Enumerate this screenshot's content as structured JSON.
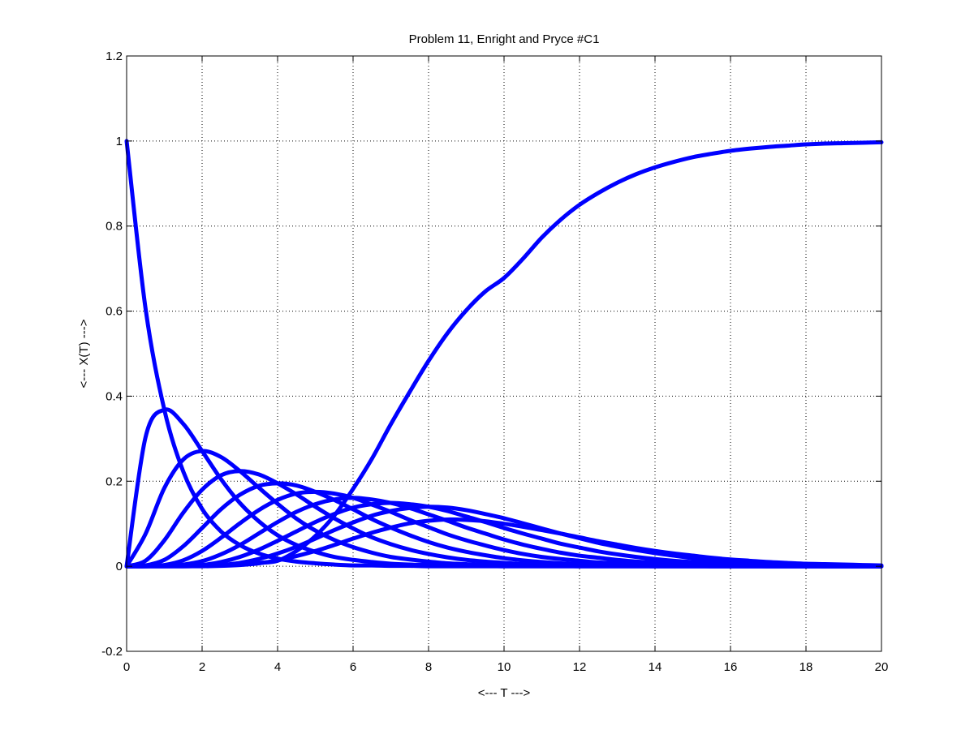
{
  "chart_data": {
    "type": "line",
    "title": "Problem 11, Enright and Pryce #C1",
    "xlabel": "<--- T --->",
    "ylabel": "<--- X(T) --->",
    "xlim": [
      0,
      20
    ],
    "ylim": [
      -0.2,
      1.2
    ],
    "xticks": [
      0,
      2,
      4,
      6,
      8,
      10,
      12,
      14,
      16,
      18,
      20
    ],
    "xtick_labels": [
      "0",
      "2",
      "4",
      "6",
      "8",
      "10",
      "12",
      "14",
      "16",
      "18",
      "20"
    ],
    "yticks": [
      -0.2,
      0,
      0.2,
      0.4,
      0.6,
      0.8,
      1,
      1.2
    ],
    "ytick_labels": [
      "-0.2",
      "0",
      "0.2",
      "0.4",
      "0.6",
      "0.8",
      "1",
      "1.2"
    ],
    "grid": true,
    "legend": "none",
    "line_color": "#0000ff",
    "x": [
      0,
      0.5,
      1,
      1.5,
      2,
      2.5,
      3,
      3.5,
      4,
      4.5,
      5,
      5.5,
      6,
      6.5,
      7,
      7.5,
      8,
      8.5,
      9,
      9.5,
      10,
      10.5,
      11,
      11.5,
      12,
      12.5,
      13,
      13.5,
      14,
      14.5,
      15,
      15.5,
      16,
      16.5,
      17,
      17.5,
      18,
      18.5,
      19,
      19.5,
      20
    ],
    "series": [
      {
        "values": [
          1,
          0.607,
          0.368,
          0.223,
          0.135,
          0.082,
          0.05,
          0.03,
          0.018,
          0.011,
          0.007,
          0.004,
          0.002,
          0.002,
          0.001,
          0.001,
          0,
          0,
          0,
          0,
          0,
          0,
          0,
          0,
          0,
          0,
          0,
          0,
          0,
          0,
          0,
          0,
          0,
          0,
          0,
          0,
          0,
          0,
          0,
          0,
          0
        ]
      },
      {
        "values": [
          0,
          0.303,
          0.368,
          0.335,
          0.271,
          0.205,
          0.149,
          0.106,
          0.073,
          0.05,
          0.034,
          0.022,
          0.015,
          0.01,
          0.006,
          0.004,
          0.003,
          0.002,
          0.001,
          0.001,
          0,
          0,
          0,
          0,
          0,
          0,
          0,
          0,
          0,
          0,
          0,
          0,
          0,
          0,
          0,
          0,
          0,
          0,
          0,
          0,
          0
        ]
      },
      {
        "values": [
          0,
          0.076,
          0.184,
          0.251,
          0.271,
          0.257,
          0.224,
          0.185,
          0.147,
          0.112,
          0.084,
          0.062,
          0.045,
          0.032,
          0.022,
          0.016,
          0.011,
          0.007,
          0.005,
          0.003,
          0.002,
          0.001,
          0.001,
          0.001,
          0,
          0,
          0,
          0,
          0,
          0,
          0,
          0,
          0,
          0,
          0,
          0,
          0,
          0,
          0,
          0,
          0
        ]
      },
      {
        "values": [
          0,
          0.013,
          0.061,
          0.126,
          0.18,
          0.214,
          0.224,
          0.216,
          0.195,
          0.169,
          0.14,
          0.113,
          0.089,
          0.068,
          0.052,
          0.039,
          0.029,
          0.021,
          0.015,
          0.011,
          0.008,
          0.005,
          0.004,
          0.003,
          0.002,
          0.001,
          0.001,
          0.001,
          0,
          0,
          0,
          0,
          0,
          0,
          0,
          0,
          0,
          0,
          0,
          0,
          0
        ]
      },
      {
        "values": [
          0,
          0.002,
          0.015,
          0.047,
          0.09,
          0.134,
          0.168,
          0.189,
          0.195,
          0.19,
          0.175,
          0.156,
          0.134,
          0.111,
          0.091,
          0.073,
          0.057,
          0.044,
          0.034,
          0.026,
          0.019,
          0.014,
          0.01,
          0.007,
          0.005,
          0.004,
          0.003,
          0.002,
          0.001,
          0.001,
          0.001,
          0,
          0,
          0,
          0,
          0,
          0,
          0,
          0,
          0,
          0
        ]
      },
      {
        "values": [
          0,
          0,
          0.003,
          0.014,
          0.036,
          0.067,
          0.101,
          0.132,
          0.156,
          0.171,
          0.175,
          0.171,
          0.161,
          0.145,
          0.128,
          0.109,
          0.092,
          0.075,
          0.061,
          0.049,
          0.038,
          0.029,
          0.022,
          0.017,
          0.013,
          0.009,
          0.007,
          0.005,
          0.004,
          0.003,
          0.002,
          0.001,
          0.001,
          0.001,
          0,
          0,
          0,
          0,
          0,
          0,
          0
        ]
      },
      {
        "values": [
          0,
          0,
          0.001,
          0.004,
          0.012,
          0.028,
          0.05,
          0.077,
          0.104,
          0.128,
          0.146,
          0.157,
          0.161,
          0.157,
          0.149,
          0.137,
          0.122,
          0.107,
          0.091,
          0.077,
          0.063,
          0.051,
          0.041,
          0.032,
          0.025,
          0.02,
          0.015,
          0.011,
          0.009,
          0.006,
          0.005,
          0.004,
          0.003,
          0.002,
          0.001,
          0.001,
          0.001,
          0,
          0,
          0,
          0
        ]
      },
      {
        "values": [
          0,
          0,
          0,
          0.001,
          0.003,
          0.01,
          0.022,
          0.039,
          0.06,
          0.082,
          0.104,
          0.123,
          0.138,
          0.146,
          0.149,
          0.146,
          0.14,
          0.13,
          0.117,
          0.104,
          0.09,
          0.077,
          0.065,
          0.053,
          0.044,
          0.035,
          0.028,
          0.022,
          0.017,
          0.013,
          0.01,
          0.008,
          0.006,
          0.004,
          0.003,
          0.002,
          0.002,
          0.001,
          0.001,
          0.001,
          0
        ]
      },
      {
        "values": [
          0,
          0,
          0,
          0,
          0.001,
          0.003,
          0.008,
          0.017,
          0.03,
          0.046,
          0.065,
          0.085,
          0.103,
          0.119,
          0.13,
          0.137,
          0.14,
          0.138,
          0.132,
          0.123,
          0.113,
          0.101,
          0.089,
          0.077,
          0.066,
          0.055,
          0.046,
          0.038,
          0.031,
          0.025,
          0.019,
          0.015,
          0.012,
          0.009,
          0.007,
          0.005,
          0.004,
          0.003,
          0.002,
          0.002,
          0.001
        ]
      },
      {
        "values": [
          0,
          0,
          0,
          0,
          0,
          0.001,
          0.003,
          0.007,
          0.014,
          0.024,
          0.036,
          0.05,
          0.065,
          0.079,
          0.091,
          0.101,
          0.107,
          0.11,
          0.109,
          0.106,
          0.1,
          0.093,
          0.085,
          0.077,
          0.068,
          0.059,
          0.051,
          0.043,
          0.036,
          0.03,
          0.025,
          0.02,
          0.016,
          0.013,
          0.01,
          0.008,
          0.006,
          0.005,
          0.004,
          0.003,
          0.002
        ]
      },
      {
        "values": [
          0,
          0,
          0,
          0,
          0.001,
          0.003,
          0.005,
          0.008,
          0.013,
          0.036,
          0.071,
          0.119,
          0.182,
          0.253,
          0.334,
          0.41,
          0.483,
          0.548,
          0.602,
          0.646,
          0.678,
          0.723,
          0.773,
          0.815,
          0.85,
          0.878,
          0.902,
          0.922,
          0.938,
          0.951,
          0.962,
          0.97,
          0.977,
          0.982,
          0.986,
          0.989,
          0.992,
          0.994,
          0.995,
          0.996,
          0.997
        ]
      }
    ]
  }
}
